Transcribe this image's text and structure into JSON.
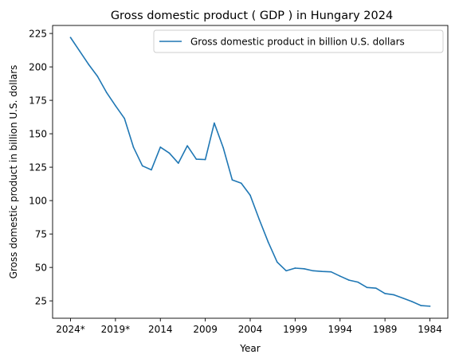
{
  "chart_data": {
    "type": "line",
    "title": "Gross domestic product ( GDP ) in Hungary 2024",
    "xlabel": "Year",
    "ylabel": "Gross domestic product in billion U.S. dollars",
    "x": [
      "2024*",
      "2023*",
      "2022*",
      "2021*",
      "2020*",
      "2019*",
      "2018",
      "2017",
      "2016",
      "2015",
      "2014",
      "2013",
      "2012",
      "2011",
      "2010",
      "2009",
      "2008",
      "2007",
      "2006",
      "2005",
      "2004",
      "2003",
      "2002",
      "2001",
      "2000",
      "1999",
      "1998",
      "1997",
      "1996",
      "1995",
      "1994",
      "1993",
      "1992",
      "1991",
      "1990",
      "1989",
      "1988",
      "1987",
      "1986",
      "1985",
      "1984"
    ],
    "x_tick_labels": [
      "2024*",
      "2019*",
      "2014",
      "2009",
      "2004",
      "1999",
      "1994",
      "1989",
      "1984"
    ],
    "x_tick_indices": [
      0,
      5,
      10,
      15,
      20,
      25,
      30,
      35,
      40
    ],
    "series": [
      {
        "name": "Gross domestic product in billion U.S. dollars",
        "color": "#1f77b4",
        "values": [
          222,
          212,
          202,
          193,
          181,
          171,
          161.5,
          140,
          126,
          123,
          140,
          135.5,
          128,
          141,
          131,
          130.7,
          158,
          139.5,
          115.5,
          113,
          104,
          86,
          69,
          54,
          47.5,
          49.5,
          49,
          47.5,
          47,
          46.7,
          43.5,
          40.5,
          39,
          35,
          34.5,
          30.5,
          29.5,
          27,
          24.5,
          21.5,
          21
        ]
      }
    ],
    "y_ticks": [
      25,
      50,
      75,
      100,
      125,
      150,
      175,
      200,
      225
    ],
    "ylim": [
      12,
      231
    ],
    "grid": false,
    "legend": "top-right"
  }
}
